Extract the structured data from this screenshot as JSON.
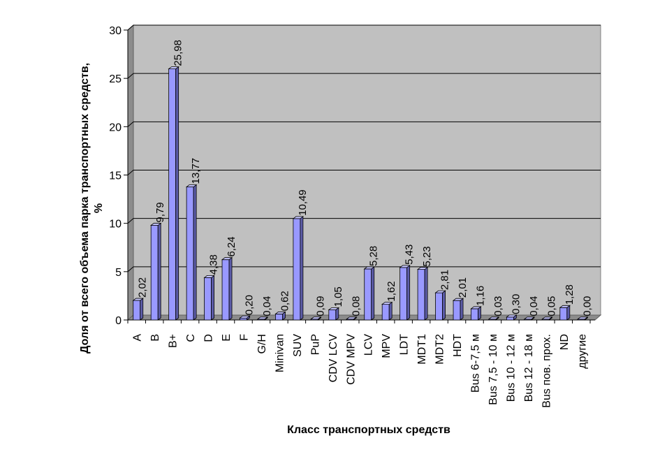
{
  "chart_data": {
    "type": "bar",
    "xlabel": "Класс транспортных средств",
    "ylabel_line1": "Доля от всего объема парка транспортных средств,",
    "ylabel_line2": "%",
    "ylim": [
      0,
      30
    ],
    "yticks": [
      "0",
      "5",
      "10",
      "15",
      "20",
      "25",
      "30"
    ],
    "grid": true,
    "style_3d": true,
    "colors": {
      "bar_front": "#9999ff",
      "bar_side": "#5c5ca8",
      "bar_top": "#c6c6ff",
      "plot_back": "#c0c0c0",
      "plot_wall": "#8c8c8c",
      "gridline": "#000000"
    },
    "categories": [
      "A",
      "B",
      "B+",
      "C",
      "D",
      "E",
      "F",
      "G/H",
      "Minivan",
      "SUV",
      "PuP",
      "CDV LCV",
      "CDV MPV",
      "LCV",
      "MPV",
      "LDT",
      "MDT1",
      "MDT2",
      "HDT",
      "Bus 6-7,5 м",
      "Bus 7,5 - 10 м",
      "Bus 10 - 12 м",
      "Bus 12 - 18 м",
      "Bus пов. прох.",
      "ND",
      "другие"
    ],
    "values": [
      2.02,
      9.79,
      25.98,
      13.77,
      4.38,
      6.24,
      0.2,
      0.04,
      0.62,
      10.49,
      0.09,
      1.05,
      0.08,
      5.28,
      1.62,
      5.43,
      5.23,
      2.81,
      2.01,
      1.16,
      0.03,
      0.3,
      0.04,
      0.05,
      1.28,
      0.0
    ],
    "value_labels": [
      "2,02",
      "9,79",
      "25,98",
      "13,77",
      "4,38",
      "6,24",
      "0,20",
      "0,04",
      "0,62",
      "10,49",
      "0,09",
      "1,05",
      "0,08",
      "5,28",
      "1,62",
      "5,43",
      "5,23",
      "2,81",
      "2,01",
      "1,16",
      "0,03",
      "0,30",
      "0,04",
      "0,05",
      "1,28",
      "0,00"
    ]
  }
}
